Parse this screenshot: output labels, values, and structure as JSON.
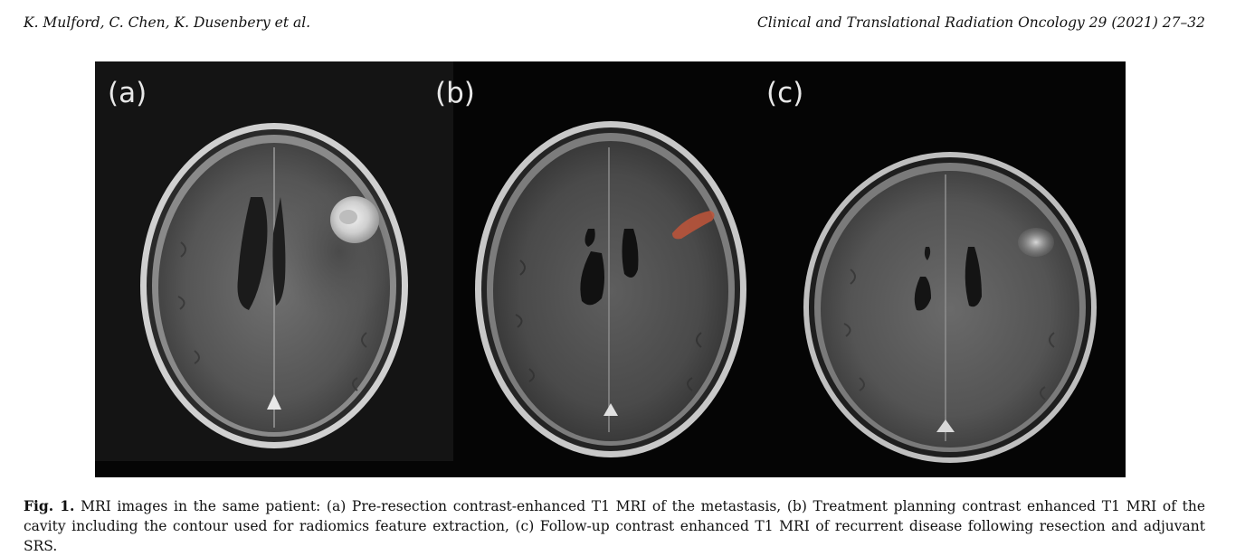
{
  "header": {
    "authors": "K. Mulford, C. Chen, K. Dusenbery et al.",
    "journal": "Clinical and Translational Radiation Oncology 29 (2021) 27–32"
  },
  "figure": {
    "panels": [
      {
        "label": "(a)"
      },
      {
        "label": "(b)"
      },
      {
        "label": "(c)"
      }
    ]
  },
  "caption": {
    "label": "Fig. 1.",
    "text": "MRI images in the same patient: (a) Pre-resection contrast-enhanced T1 MRI of the metastasis, (b) Treatment planning contrast enhanced T1 MRI of the cavity including the contour used for radiomics feature extraction, (c) Follow-up contrast enhanced T1 MRI of recurrent disease following resection and adjuvant SRS."
  }
}
